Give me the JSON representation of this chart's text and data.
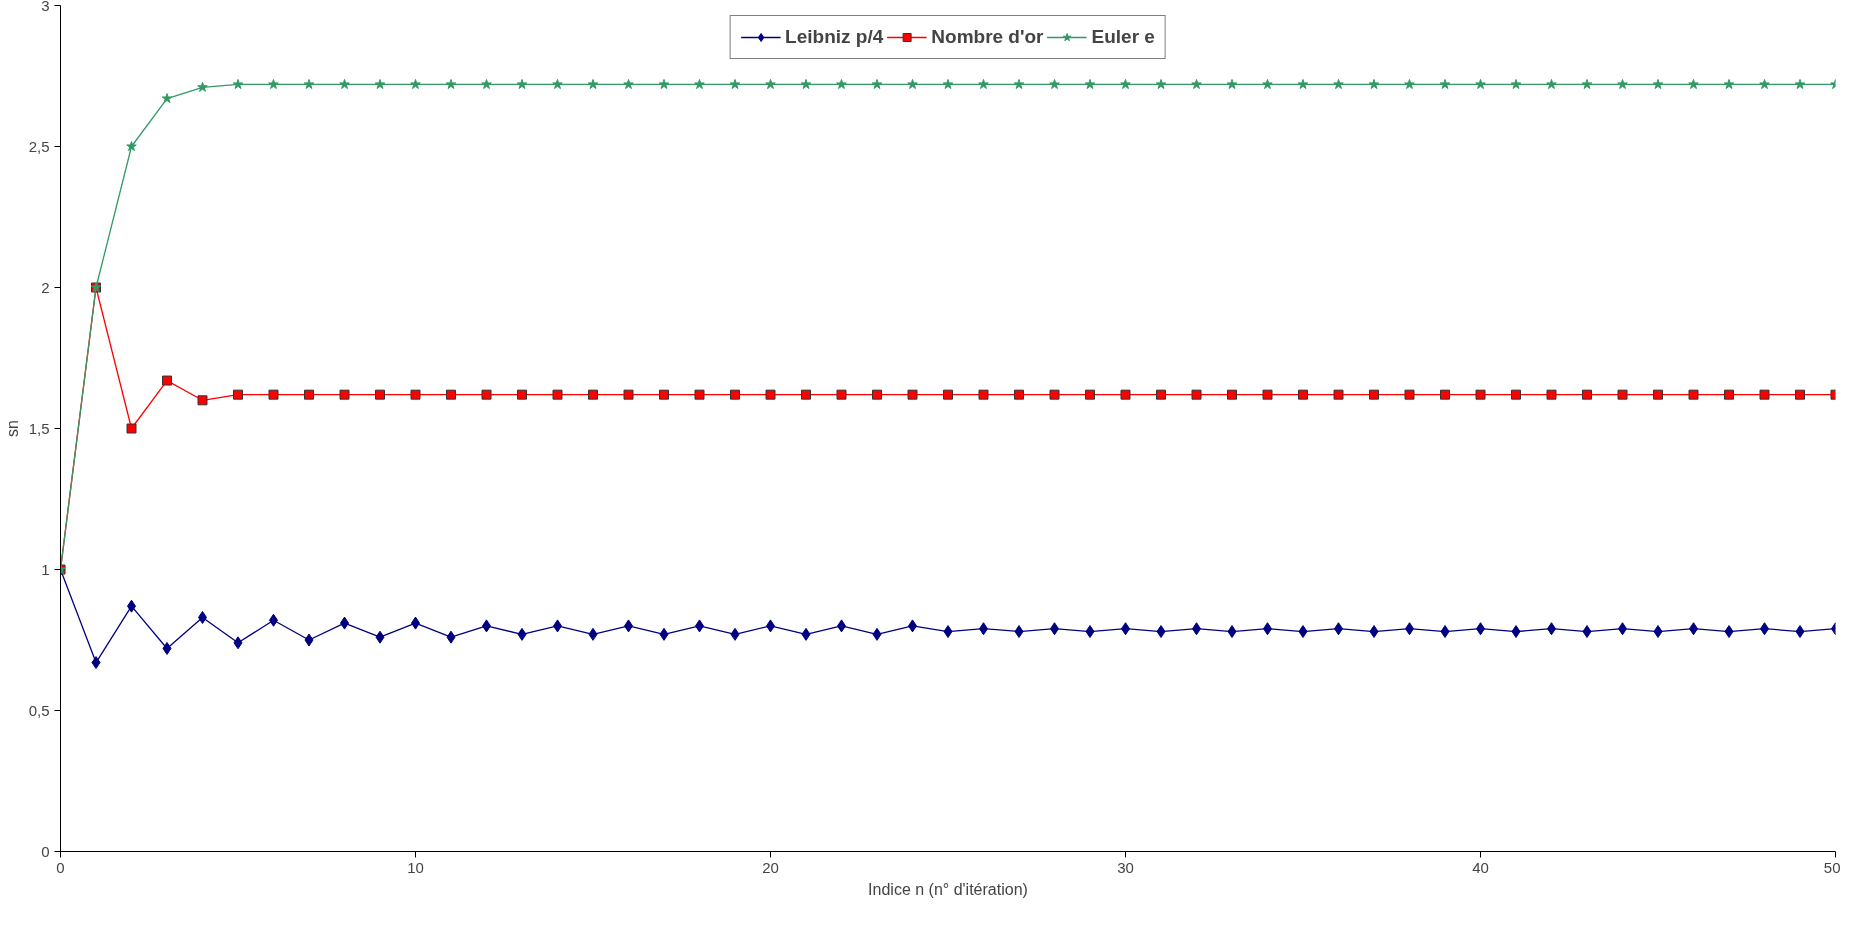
{
  "chart_data": {
    "type": "line",
    "xlabel": "Indice n (n° d'itération)",
    "ylabel": "sn",
    "x": [
      0,
      1,
      2,
      3,
      4,
      5,
      6,
      7,
      8,
      9,
      10,
      11,
      12,
      13,
      14,
      15,
      16,
      17,
      18,
      19,
      20,
      21,
      22,
      23,
      24,
      25,
      26,
      27,
      28,
      29,
      30,
      31,
      32,
      33,
      34,
      35,
      36,
      37,
      38,
      39,
      40,
      41,
      42,
      43,
      44,
      45,
      46,
      47,
      48,
      49,
      50
    ],
    "xlim": [
      0,
      50
    ],
    "xticks": [
      0,
      10,
      20,
      30,
      40,
      50
    ],
    "ylim": [
      0,
      3
    ],
    "yticks": [
      0,
      {
        "value": 0.5,
        "label": "0,5"
      },
      1,
      {
        "value": 1.5,
        "label": "1,5"
      },
      2,
      {
        "value": 2.5,
        "label": "2,5"
      },
      3
    ],
    "grid": false,
    "legend": "top",
    "line_style": "solid",
    "series": [
      {
        "name": "Leibniz p/4",
        "color": "#000080",
        "marker": "diamond",
        "values": [
          1,
          0.67,
          0.87,
          0.72,
          0.83,
          0.74,
          0.82,
          0.75,
          0.81,
          0.76,
          0.81,
          0.76,
          0.8,
          0.77,
          0.8,
          0.77,
          0.8,
          0.77,
          0.8,
          0.77,
          0.8,
          0.77,
          0.8,
          0.77,
          0.8,
          0.78,
          0.79,
          0.78,
          0.79,
          0.78,
          0.79,
          0.78,
          0.79,
          0.78,
          0.79,
          0.78,
          0.79,
          0.78,
          0.79,
          0.78,
          0.79,
          0.78,
          0.79,
          0.78,
          0.79,
          0.78,
          0.79,
          0.78,
          0.79,
          0.78,
          0.79
        ]
      },
      {
        "name": "Nombre d'or",
        "color": "#ff0000",
        "marker": "square",
        "values": [
          1,
          2,
          1.5,
          1.67,
          1.6,
          1.62,
          1.62,
          1.62,
          1.62,
          1.62,
          1.62,
          1.62,
          1.62,
          1.62,
          1.62,
          1.62,
          1.62,
          1.62,
          1.62,
          1.62,
          1.62,
          1.62,
          1.62,
          1.62,
          1.62,
          1.62,
          1.62,
          1.62,
          1.62,
          1.62,
          1.62,
          1.62,
          1.62,
          1.62,
          1.62,
          1.62,
          1.62,
          1.62,
          1.62,
          1.62,
          1.62,
          1.62,
          1.62,
          1.62,
          1.62,
          1.62,
          1.62,
          1.62,
          1.62,
          1.62,
          1.62
        ]
      },
      {
        "name": "Euler e",
        "color": "#339966",
        "marker": "star",
        "values": [
          1,
          2,
          2.5,
          2.67,
          2.71,
          2.72,
          2.72,
          2.72,
          2.72,
          2.72,
          2.72,
          2.72,
          2.72,
          2.72,
          2.72,
          2.72,
          2.72,
          2.72,
          2.72,
          2.72,
          2.72,
          2.72,
          2.72,
          2.72,
          2.72,
          2.72,
          2.72,
          2.72,
          2.72,
          2.72,
          2.72,
          2.72,
          2.72,
          2.72,
          2.72,
          2.72,
          2.72,
          2.72,
          2.72,
          2.72,
          2.72,
          2.72,
          2.72,
          2.72,
          2.72,
          2.72,
          2.72,
          2.72,
          2.72,
          2.72,
          2.72
        ]
      }
    ]
  }
}
